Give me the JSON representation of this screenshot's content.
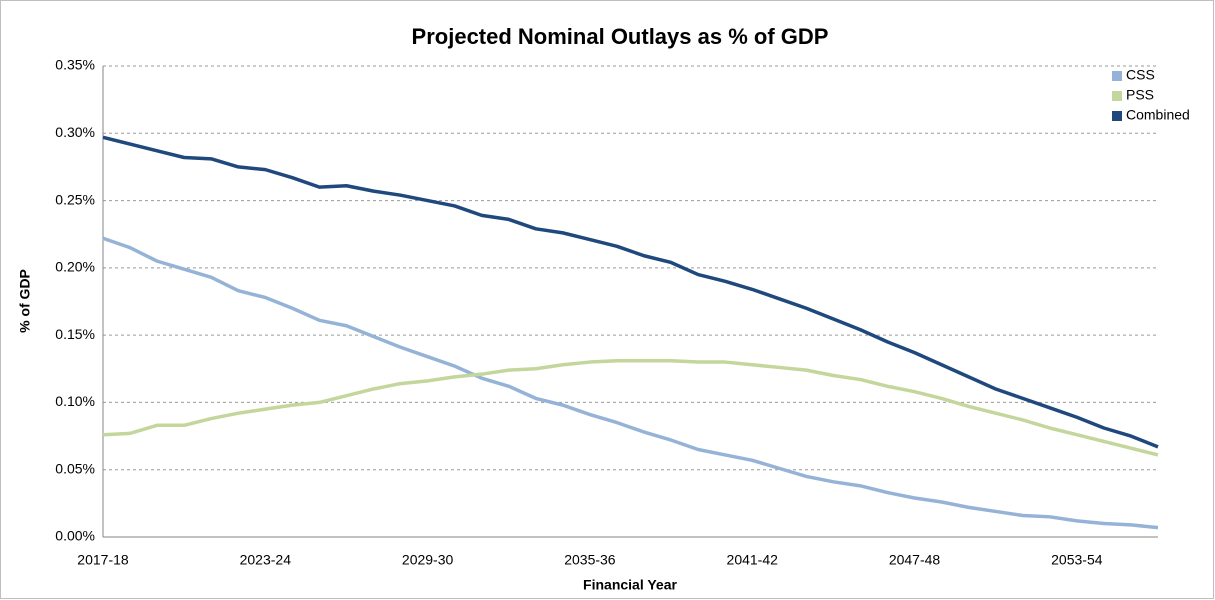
{
  "chart_data": {
    "type": "line",
    "title": "Projected Nominal Outlays as % of GDP",
    "x_label": "Financial Year",
    "y_label": "% of GDP",
    "categories": [
      "2017-18",
      null,
      null,
      null,
      null,
      null,
      "2023-24",
      null,
      null,
      null,
      null,
      null,
      "2029-30",
      null,
      null,
      null,
      null,
      null,
      "2035-36",
      null,
      null,
      null,
      null,
      null,
      "2041-42",
      null,
      null,
      null,
      null,
      null,
      "2047-48",
      null,
      null,
      null,
      null,
      null,
      "2053-54",
      null,
      null,
      null
    ],
    "series": [
      {
        "name": "CSS",
        "color": "#95b3d7",
        "values": [
          0.222,
          0.215,
          0.205,
          0.199,
          0.193,
          0.183,
          0.178,
          0.17,
          0.161,
          0.157,
          0.149,
          0.141,
          0.134,
          0.127,
          0.118,
          0.112,
          0.103,
          0.098,
          0.091,
          0.085,
          0.078,
          0.072,
          0.065,
          0.061,
          0.057,
          0.051,
          0.045,
          0.041,
          0.038,
          0.033,
          0.029,
          0.026,
          0.022,
          0.019,
          0.016,
          0.015,
          0.012,
          0.01,
          0.009,
          0.007
        ]
      },
      {
        "name": "PSS",
        "color": "#c3d69b",
        "values": [
          0.076,
          0.077,
          0.083,
          0.083,
          0.088,
          0.092,
          0.095,
          0.098,
          0.1,
          0.105,
          0.11,
          0.114,
          0.116,
          0.119,
          0.121,
          0.124,
          0.125,
          0.128,
          0.13,
          0.131,
          0.131,
          0.131,
          0.13,
          0.13,
          0.128,
          0.126,
          0.124,
          0.12,
          0.117,
          0.112,
          0.108,
          0.103,
          0.097,
          0.092,
          0.087,
          0.081,
          0.076,
          0.071,
          0.066,
          0.061
        ]
      },
      {
        "name": "Combined",
        "color": "#1f497d",
        "values": [
          0.297,
          0.292,
          0.287,
          0.282,
          0.281,
          0.275,
          0.273,
          0.267,
          0.26,
          0.261,
          0.257,
          0.254,
          0.25,
          0.246,
          0.239,
          0.236,
          0.229,
          0.226,
          0.221,
          0.216,
          0.209,
          0.204,
          0.195,
          0.19,
          0.184,
          0.177,
          0.17,
          0.162,
          0.154,
          0.145,
          0.137,
          0.128,
          0.119,
          0.11,
          0.103,
          0.096,
          0.089,
          0.081,
          0.075,
          0.067
        ]
      }
    ],
    "ylim": [
      0,
      0.35
    ],
    "yticks": [
      {
        "value": 0,
        "label": "0.00%"
      },
      {
        "value": 0.05,
        "label": "0.05%"
      },
      {
        "value": 0.1,
        "label": "0.10%"
      },
      {
        "value": 0.15,
        "label": "0.15%"
      },
      {
        "value": 0.2,
        "label": "0.20%"
      },
      {
        "value": 0.25,
        "label": "0.25%"
      },
      {
        "value": 0.3,
        "label": "0.30%"
      },
      {
        "value": 0.35,
        "label": "0.35%"
      }
    ],
    "grid": true,
    "legend": "upper right"
  }
}
